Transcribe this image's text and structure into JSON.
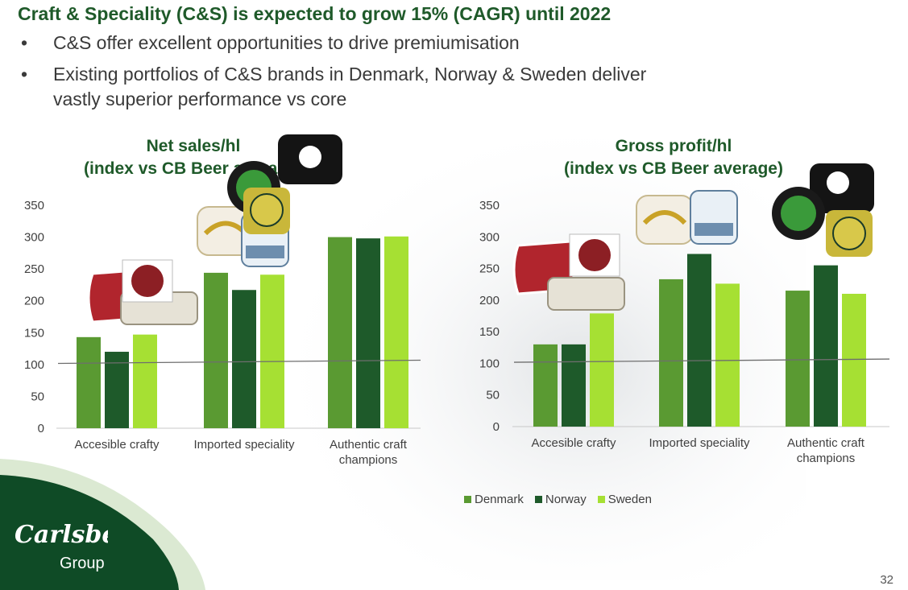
{
  "slide": {
    "title": "Craft & Speciality (C&S) is expected to grow 15% (CAGR) until 2022",
    "bullets": [
      "C&S offer excellent opportunities to drive premiumisation",
      "Existing portfolios of C&S brands in Denmark, Norway & Sweden deliver vastly superior performance vs core"
    ],
    "page_number": "32",
    "logo_text": "Carlsberg Group"
  },
  "colors": {
    "Denmark": "#5a9a32",
    "Norway": "#1e5a2a",
    "Sweden": "#a6e033",
    "title_green": "#1f5a2a"
  },
  "legend": [
    "Denmark",
    "Norway",
    "Sweden"
  ],
  "brand_badges": [
    "Brewmasters Collection",
    "Carlsberg",
    "Frydenlund",
    "Kronenbourg",
    "1664 Blanc",
    "Brooklyn Brewery",
    "Nya Carnegie Bryggeriet",
    "Cobsen"
  ],
  "chart_data": [
    {
      "type": "bar",
      "title_lines": [
        "Net sales/hl",
        "(index vs CB Beer average)"
      ],
      "categories": [
        [
          "Accesible crafty"
        ],
        [
          "Imported speciality"
        ],
        [
          "Authentic craft",
          "champions"
        ]
      ],
      "series": [
        {
          "name": "Denmark",
          "values": [
            143,
            244,
            300
          ]
        },
        {
          "name": "Norway",
          "values": [
            120,
            217,
            298
          ]
        },
        {
          "name": "Sweden",
          "values": [
            147,
            241,
            301
          ]
        }
      ],
      "ylim": [
        0,
        350
      ],
      "yticks": [
        0,
        50,
        100,
        150,
        200,
        250,
        300,
        350
      ],
      "reference_value": 103,
      "grid": false
    },
    {
      "type": "bar",
      "title_lines": [
        "Gross profit/hl",
        "(index vs CB Beer average)"
      ],
      "categories": [
        [
          "Accesible crafty"
        ],
        [
          "Imported speciality"
        ],
        [
          "Authentic craft",
          "champions"
        ]
      ],
      "series": [
        {
          "name": "Denmark",
          "values": [
            130,
            233,
            215
          ]
        },
        {
          "name": "Norway",
          "values": [
            130,
            273,
            255
          ]
        },
        {
          "name": "Sweden",
          "values": [
            179,
            226,
            210
          ]
        }
      ],
      "ylim": [
        0,
        350
      ],
      "yticks": [
        0,
        50,
        100,
        150,
        200,
        250,
        300,
        350
      ],
      "reference_value": 103,
      "grid": false
    }
  ]
}
